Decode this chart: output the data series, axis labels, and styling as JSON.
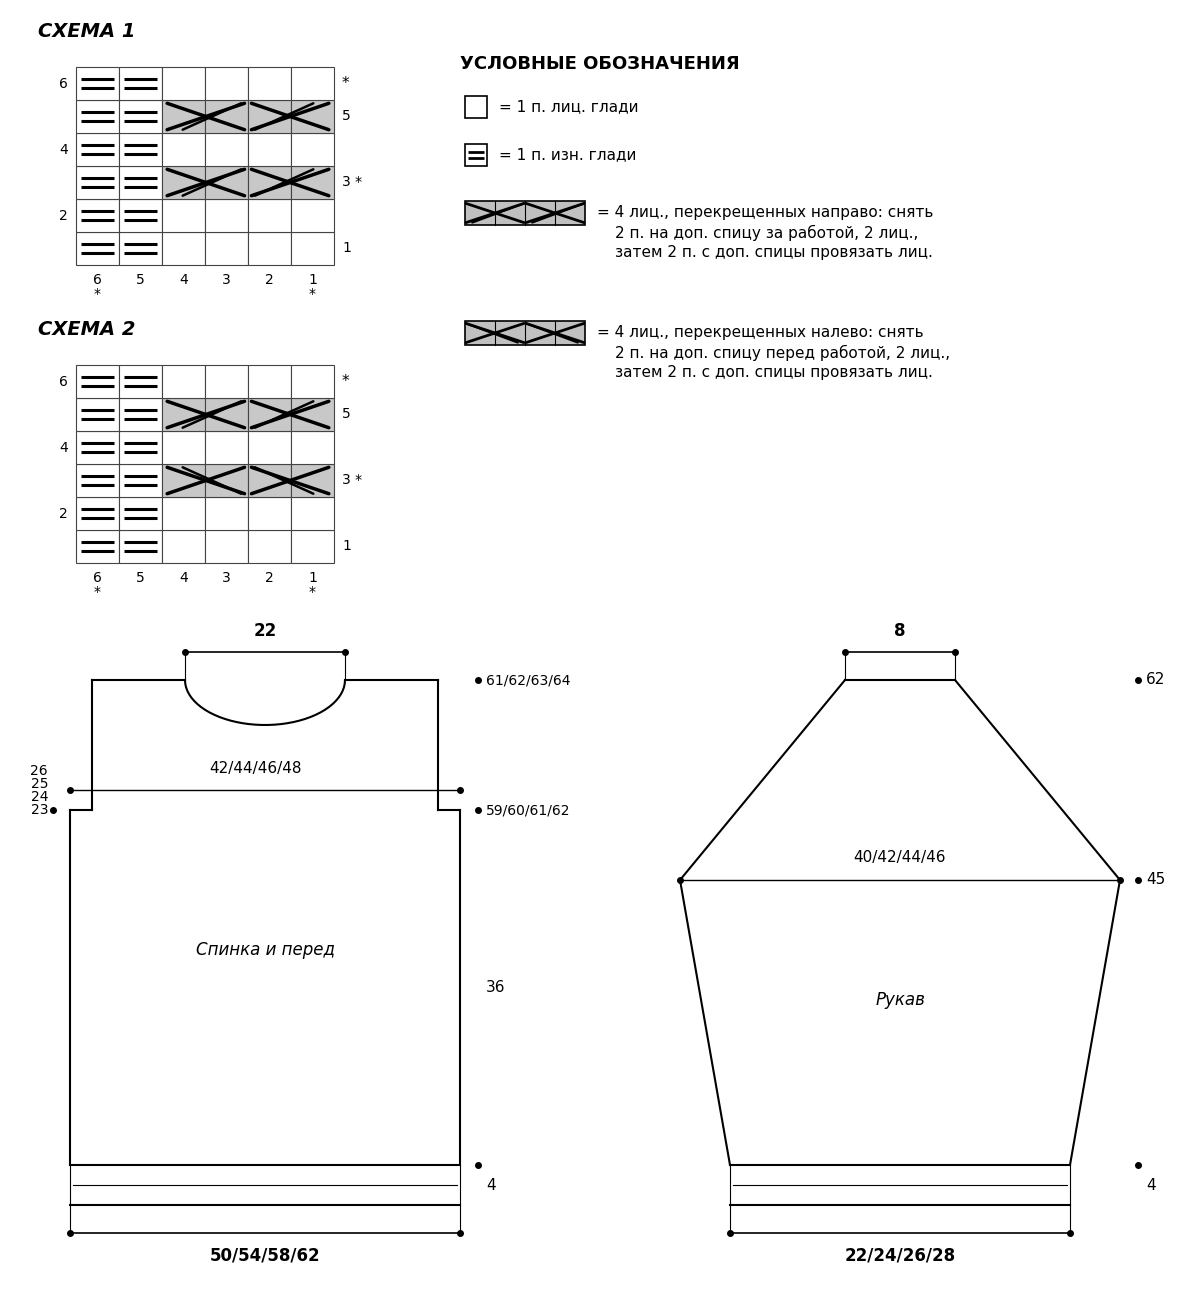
{
  "schema1_title": "СХЕМА 1",
  "schema2_title": "СХЕМА 2",
  "legend_title": "УСЛОВНЫЕ ОБОЗНАЧЕНИЯ",
  "legend_line1": "= 1 п. лиц. глади",
  "legend_line2": "= 1 п. изн. глади",
  "legend_line3a": "= 4 лиц., перекрещенных направо: снять",
  "legend_line3b": "2 п. на доп. спицу за работой, 2 лиц.,",
  "legend_line3c": "затем 2 п. с доп. спицы провязать лиц.",
  "legend_line4a": "= 4 лиц., перекрещенных налево: снять",
  "legend_line4b": "2 п. на доп. спицу перед работой, 2 лиц.,",
  "legend_line4c": "затем 2 п. с доп. спицы провязать лиц.",
  "body_label": "Спинка и перед",
  "sleeve_label": "Рукав",
  "dim_22": "22",
  "dim_42": "42/44/46/48",
  "dim_50": "50/54/58/62",
  "dim_61top": "61/62/63/64",
  "dim_59bot": "59/60/61/62",
  "dim_36": "36",
  "dim_4body": "4",
  "dim_23": "23",
  "dim_24": "24",
  "dim_25": "25",
  "dim_26": "26",
  "dim_8": "8",
  "dim_40": "40/42/44/46",
  "dim_22sleeve": "22/24/26/28",
  "dim_62": "62",
  "dim_45": "45",
  "dim_4sleeve": "4"
}
